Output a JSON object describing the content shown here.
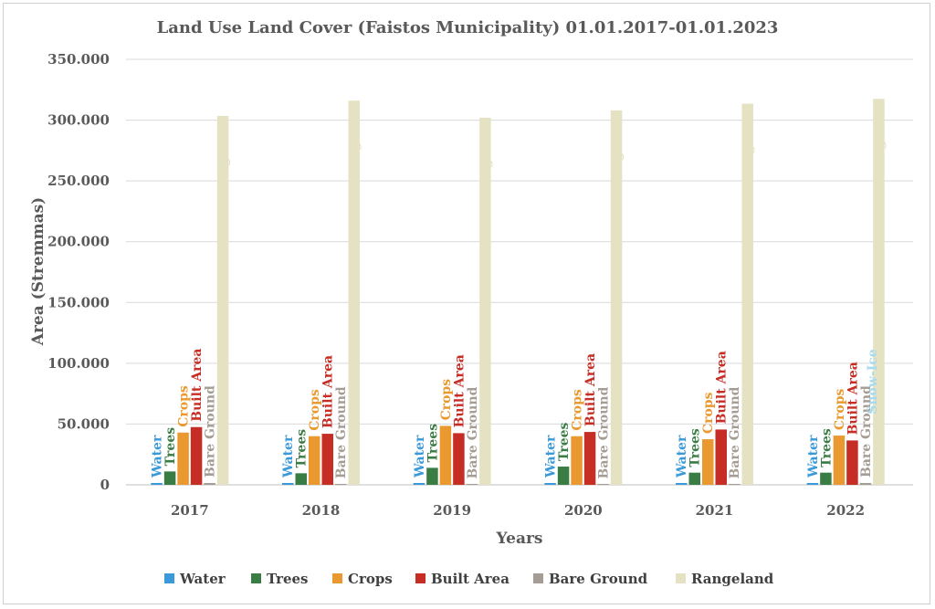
{
  "chart_data": {
    "type": "bar",
    "title": "Land Use Land Cover (Faistos Municipality) 01.01.2017-01.01.2023",
    "xlabel": "Years",
    "ylabel": "Area (Stremmas)",
    "categories": [
      "2017",
      "2018",
      "2019",
      "2020",
      "2021",
      "2022"
    ],
    "ylim": [
      0,
      350000
    ],
    "yticks": [
      0,
      50000,
      100000,
      150000,
      200000,
      250000,
      300000,
      350000
    ],
    "ytick_labels": [
      "0",
      "50.000",
      "100.000",
      "150.000",
      "200.000",
      "250.000",
      "300.000",
      "350.000"
    ],
    "grid": true,
    "legend_position": "bottom",
    "series": [
      {
        "name": "Water",
        "color": "#3a9ad9",
        "values": [
          1500,
          1500,
          1500,
          1500,
          1500,
          1500
        ],
        "labels": [
          "Water",
          "Water",
          "Water",
          "Water",
          "Water",
          "Water"
        ]
      },
      {
        "name": "Trees",
        "color": "#3a7d44",
        "values": [
          11000,
          9500,
          14000,
          15000,
          10000,
          10000
        ],
        "labels": [
          "Trees",
          "Trees",
          "Trees",
          "Trees",
          "Trees",
          "Trees"
        ]
      },
      {
        "name": "Crops",
        "color": "#e9992f",
        "values": [
          43000,
          40000,
          48500,
          40000,
          37500,
          40500
        ],
        "labels": [
          "Crops",
          "Crops",
          "Crops",
          "Crops",
          "Crops",
          "Crops"
        ]
      },
      {
        "name": "Built Area",
        "color": "#c62d25",
        "values": [
          47500,
          42000,
          42500,
          43500,
          45500,
          36500
        ],
        "labels": [
          "Built Area",
          "Built Area",
          "Built Area",
          "Built Area",
          "Built Area",
          "Built Area"
        ]
      },
      {
        "name": "Bare Ground",
        "color": "#a59d94",
        "values": [
          1500,
          600,
          400,
          400,
          400,
          1500
        ],
        "labels": [
          "Bare Ground",
          "Bare Ground",
          "Bare Ground",
          "Bare Ground",
          "Bare Ground",
          "Bare Ground"
        ]
      },
      {
        "name": "Rangeland",
        "color": "#e4e2c3",
        "values": [
          303500,
          316000,
          302000,
          308000,
          313500,
          317500
        ],
        "labels": [
          "Rangeland",
          "Rangeland",
          "Rangeland",
          "Rangeland",
          "Rangeland",
          "Rangeland"
        ]
      }
    ],
    "annotations": [
      {
        "text": "Snow-Ice",
        "color": "#a6dbef",
        "category": "2022"
      }
    ]
  }
}
